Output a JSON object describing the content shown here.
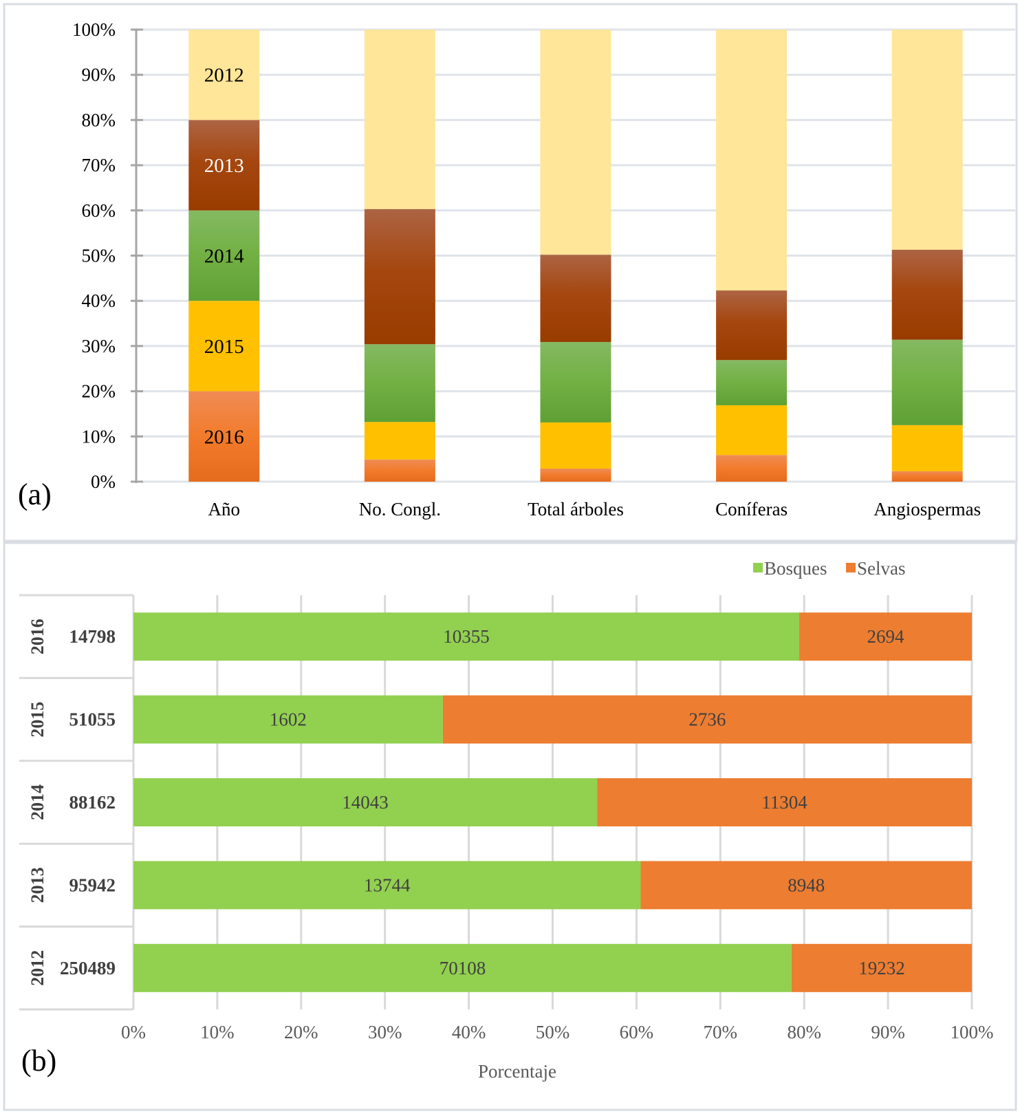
{
  "chart_data": [
    {
      "id": "a",
      "type": "bar",
      "stacked": true,
      "orientation": "vertical",
      "normalized_percent": true,
      "panel_label": "(a)",
      "title": "",
      "xlabel": "",
      "ylabel": "",
      "ylim": [
        0,
        100
      ],
      "yticks": [
        "0%",
        "10%",
        "20%",
        "30%",
        "40%",
        "50%",
        "60%",
        "70%",
        "80%",
        "90%",
        "100%"
      ],
      "grid": true,
      "categories": [
        "Año",
        "No. Congl.",
        "Total árboles",
        "Coníferas",
        "Angiospermas"
      ],
      "series": [
        {
          "name": "2016",
          "color": "#ed7d31",
          "values": [
            20,
            4.9,
            2.9,
            5.9,
            2.3
          ],
          "label_color": "#000000"
        },
        {
          "name": "2015",
          "color": "#ffc000",
          "values": [
            20,
            8.3,
            10.2,
            11.0,
            10.2
          ],
          "label_color": "#000000"
        },
        {
          "name": "2014",
          "color": "#70ad47",
          "values": [
            20,
            17.2,
            17.8,
            10.0,
            18.9
          ],
          "label_color": "#000000"
        },
        {
          "name": "2013",
          "color": "#9e3f00",
          "values": [
            20,
            29.9,
            19.3,
            15.4,
            19.9
          ],
          "label_color": "#ffffff"
        },
        {
          "name": "2012",
          "color": "#ffe699",
          "values": [
            20,
            39.7,
            49.8,
            57.7,
            48.7
          ],
          "label_color": "#000000"
        }
      ],
      "segment_labels_on_category": "Año"
    },
    {
      "id": "b",
      "type": "bar",
      "stacked": true,
      "orientation": "horizontal",
      "normalized_percent": true,
      "panel_label": "(b)",
      "title": "",
      "xlabel": "Porcentaje",
      "ylabel": "",
      "xlim": [
        0,
        100
      ],
      "xticks": [
        "0%",
        "10%",
        "20%",
        "30%",
        "40%",
        "50%",
        "60%",
        "70%",
        "80%",
        "90%",
        "100%"
      ],
      "grid": true,
      "legend": {
        "position": "top-right",
        "entries": [
          "Bosques",
          "Selvas"
        ]
      },
      "rows": [
        {
          "year": "2016",
          "total": "14798"
        },
        {
          "year": "2015",
          "total": "51055"
        },
        {
          "year": "2014",
          "total": "88162"
        },
        {
          "year": "2013",
          "total": "95942"
        },
        {
          "year": "2012",
          "total": "250489"
        }
      ],
      "series": [
        {
          "name": "Bosques",
          "color": "#92d050",
          "values": [
            10355,
            1602,
            14043,
            13744,
            70108
          ],
          "percent": [
            79.4,
            36.9,
            55.3,
            60.5,
            78.5
          ]
        },
        {
          "name": "Selvas",
          "color": "#ed7d31",
          "values": [
            2694,
            2736,
            11304,
            8948,
            19232
          ],
          "percent": [
            20.6,
            63.1,
            44.7,
            39.5,
            21.5
          ]
        }
      ]
    }
  ]
}
